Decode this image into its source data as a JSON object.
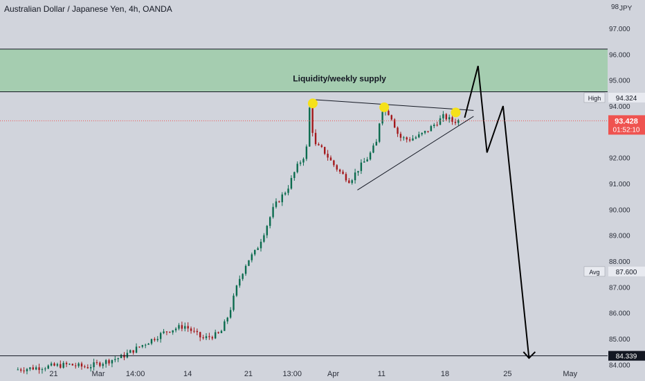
{
  "header": {
    "title": "Australian Dollar / Japanese Yen, 4h, OANDA",
    "currency": "JPY"
  },
  "colors": {
    "background": "#d1d4dc",
    "up_candle": "#0b6b4e",
    "down_candle": "#a3181b",
    "zone_fill": "#a5cdb0",
    "last_price_bg": "#ef5350",
    "line": "#131722"
  },
  "chart_data": {
    "type": "candlestick",
    "title": "Australian Dollar / Japanese Yen, 4h, OANDA",
    "y_axis": {
      "unit": "JPY",
      "range": [
        83.9,
        98.1
      ],
      "ticks": [
        "97.000",
        "96.000",
        "95.000",
        "94.000",
        "92.000",
        "91.000",
        "90.000",
        "89.000",
        "88.000",
        "87.000",
        "86.000",
        "85.000",
        "84.000"
      ],
      "tick_values": [
        97,
        96,
        95,
        94,
        92,
        91,
        90,
        89,
        88,
        87,
        86,
        85,
        84
      ]
    },
    "x_axis": {
      "ticks": [
        "21",
        "Mar",
        "14:00",
        "14",
        "21",
        "13:00",
        "Apr",
        "11",
        "18",
        "25",
        "May"
      ],
      "tick_values": [
        0.0,
        5.0,
        9.15,
        15.0,
        21.8,
        26.7,
        31.3,
        36.7,
        43.8,
        50.8,
        57.8
      ],
      "range": [
        -6,
        62
      ]
    },
    "candle_path": [
      [
        -4,
        83.8
      ],
      [
        2,
        84.0
      ],
      [
        4,
        83.9
      ],
      [
        6,
        84.1
      ],
      [
        8,
        84.3
      ],
      [
        9.5,
        84.6
      ],
      [
        11,
        84.9
      ],
      [
        13,
        85.3
      ],
      [
        15,
        85.5
      ],
      [
        17,
        85.0
      ],
      [
        19,
        85.2
      ],
      [
        20,
        86.0
      ],
      [
        21,
        87.2
      ],
      [
        22,
        88.0
      ],
      [
        23,
        88.4
      ],
      [
        24,
        89.2
      ],
      [
        25,
        90.1
      ],
      [
        26.5,
        90.8
      ],
      [
        27.5,
        91.6
      ],
      [
        28.6,
        92.2
      ],
      [
        29,
        94.0
      ],
      [
        29.5,
        92.5
      ],
      [
        30.5,
        92.3
      ],
      [
        31.5,
        91.8
      ],
      [
        32.5,
        91.4
      ],
      [
        33.5,
        91.1
      ],
      [
        34.5,
        91.6
      ],
      [
        35.5,
        92.0
      ],
      [
        36.5,
        92.6
      ],
      [
        37,
        93.9
      ],
      [
        38,
        93.7
      ],
      [
        39,
        92.8
      ],
      [
        40,
        92.7
      ],
      [
        41,
        92.8
      ],
      [
        42,
        93.0
      ],
      [
        43,
        93.3
      ],
      [
        44,
        93.6
      ],
      [
        45,
        93.4
      ],
      [
        45.5,
        93.43
      ]
    ],
    "levels": [
      {
        "label": "High",
        "value": 94.324,
        "value_label": "94.324"
      },
      {
        "label": "",
        "value": 93.428,
        "value_label": "93.428",
        "countdown": "01:52:10"
      },
      {
        "label": "Avg",
        "value": 87.6,
        "value_label": "87.600"
      },
      {
        "label": "",
        "value": 84.339,
        "value_label": "84.339"
      }
    ],
    "zones": [
      {
        "label": "Liquidity/weekly supply",
        "from": 94.55,
        "to": 96.2
      }
    ],
    "annotations": {
      "triangle_upper": [
        [
          29,
          94.25
        ],
        [
          47,
          93.83
        ]
      ],
      "triangle_lower": [
        [
          34,
          90.75
        ],
        [
          47,
          93.6
        ]
      ],
      "markers": [
        [
          29,
          94.1
        ],
        [
          37,
          93.95
        ],
        [
          45,
          93.75
        ]
      ],
      "projection": [
        [
          46,
          93.55
        ],
        [
          47.5,
          95.55
        ],
        [
          48.5,
          92.2
        ],
        [
          50.3,
          94.0
        ],
        [
          53.2,
          84.25
        ]
      ],
      "arrowhead_at": [
        53.2,
        84.25
      ]
    }
  }
}
